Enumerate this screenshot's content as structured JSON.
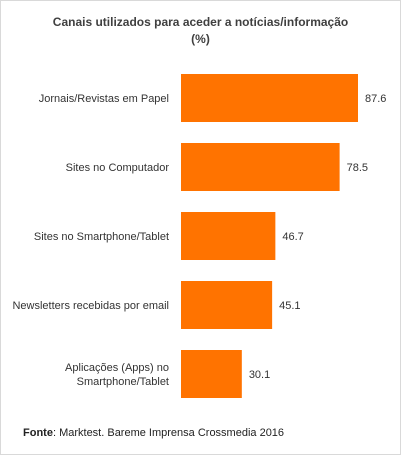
{
  "chart_data": {
    "type": "bar",
    "orientation": "horizontal",
    "title": "Canais utilizados para aceder a notícias/informação",
    "subtitle": "(%)",
    "categories": [
      [
        "Jornais/Revistas em Papel"
      ],
      [
        "Sites no Computador"
      ],
      [
        "Sites no Smartphone/Tablet"
      ],
      [
        "Newsletters recebidas por email"
      ],
      [
        "Aplicações (Apps) no",
        "Smartphone/Tablet"
      ]
    ],
    "values": [
      87.6,
      78.5,
      46.7,
      45.1,
      30.1
    ],
    "value_labels": [
      "87.6",
      "78.5",
      "46.7",
      "45.1",
      "30.1"
    ],
    "xlim": [
      0,
      100
    ],
    "grid": false,
    "bar_color": "#ff7300"
  },
  "source": {
    "label": "Fonte",
    "text": ": Marktest. Bareme Imprensa Crossmedia 2016"
  }
}
